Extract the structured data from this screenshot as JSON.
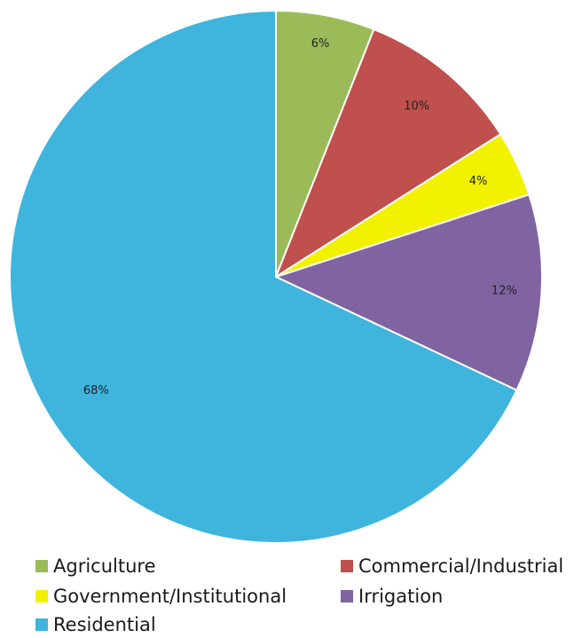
{
  "chart_data": {
    "type": "pie",
    "title": "",
    "start_angle_deg": 0,
    "direction": "clockwise",
    "slices": [
      {
        "label": "Agriculture",
        "value": 6,
        "data_label": "6%",
        "color": "#9bbb59"
      },
      {
        "label": "Commercial/Industrial",
        "value": 10,
        "data_label": "10%",
        "color": "#c0504d"
      },
      {
        "label": "Government/Institutional",
        "value": 4,
        "data_label": "4%",
        "color": "#f2f200"
      },
      {
        "label": "Irrigation",
        "value": 12,
        "data_label": "12%",
        "color": "#8064a2"
      },
      {
        "label": "Residential",
        "value": 68,
        "data_label": "68%",
        "color": "#3fb4dd"
      }
    ],
    "legend": {
      "position": "bottom",
      "entries": [
        "Agriculture",
        "Commercial/Industrial",
        "Government/Institutional",
        "Irrigation",
        "Residential"
      ]
    }
  }
}
